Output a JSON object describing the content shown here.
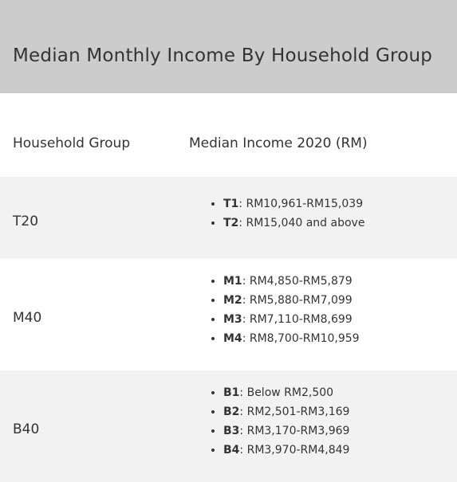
{
  "header": {
    "title": "Median Monthly Income By Household Group"
  },
  "table": {
    "columns": [
      "Household Group",
      "Median Income 2020 (RM)"
    ],
    "rows": [
      {
        "group": "T20",
        "items": [
          {
            "code": "T1",
            "text": ": RM10,961-RM15,039"
          },
          {
            "code": "T2",
            "text": ": RM15,040 and above"
          }
        ]
      },
      {
        "group": "M40",
        "items": [
          {
            "code": "M1",
            "text": ": RM4,850-RM5,879"
          },
          {
            "code": "M2",
            "text": ": RM5,880-RM7,099"
          },
          {
            "code": "M3",
            "text": ": RM7,110-RM8,699"
          },
          {
            "code": "M4",
            "text": ": RM8,700-RM10,959"
          }
        ]
      },
      {
        "group": "B40",
        "items": [
          {
            "code": "B1",
            "text": ": Below RM2,500"
          },
          {
            "code": "B2",
            "text": ": RM2,501-RM3,169"
          },
          {
            "code": "B3",
            "text": ": RM3,170-RM3,969"
          },
          {
            "code": "B4",
            "text": ": RM3,970-RM4,849"
          }
        ]
      }
    ]
  }
}
